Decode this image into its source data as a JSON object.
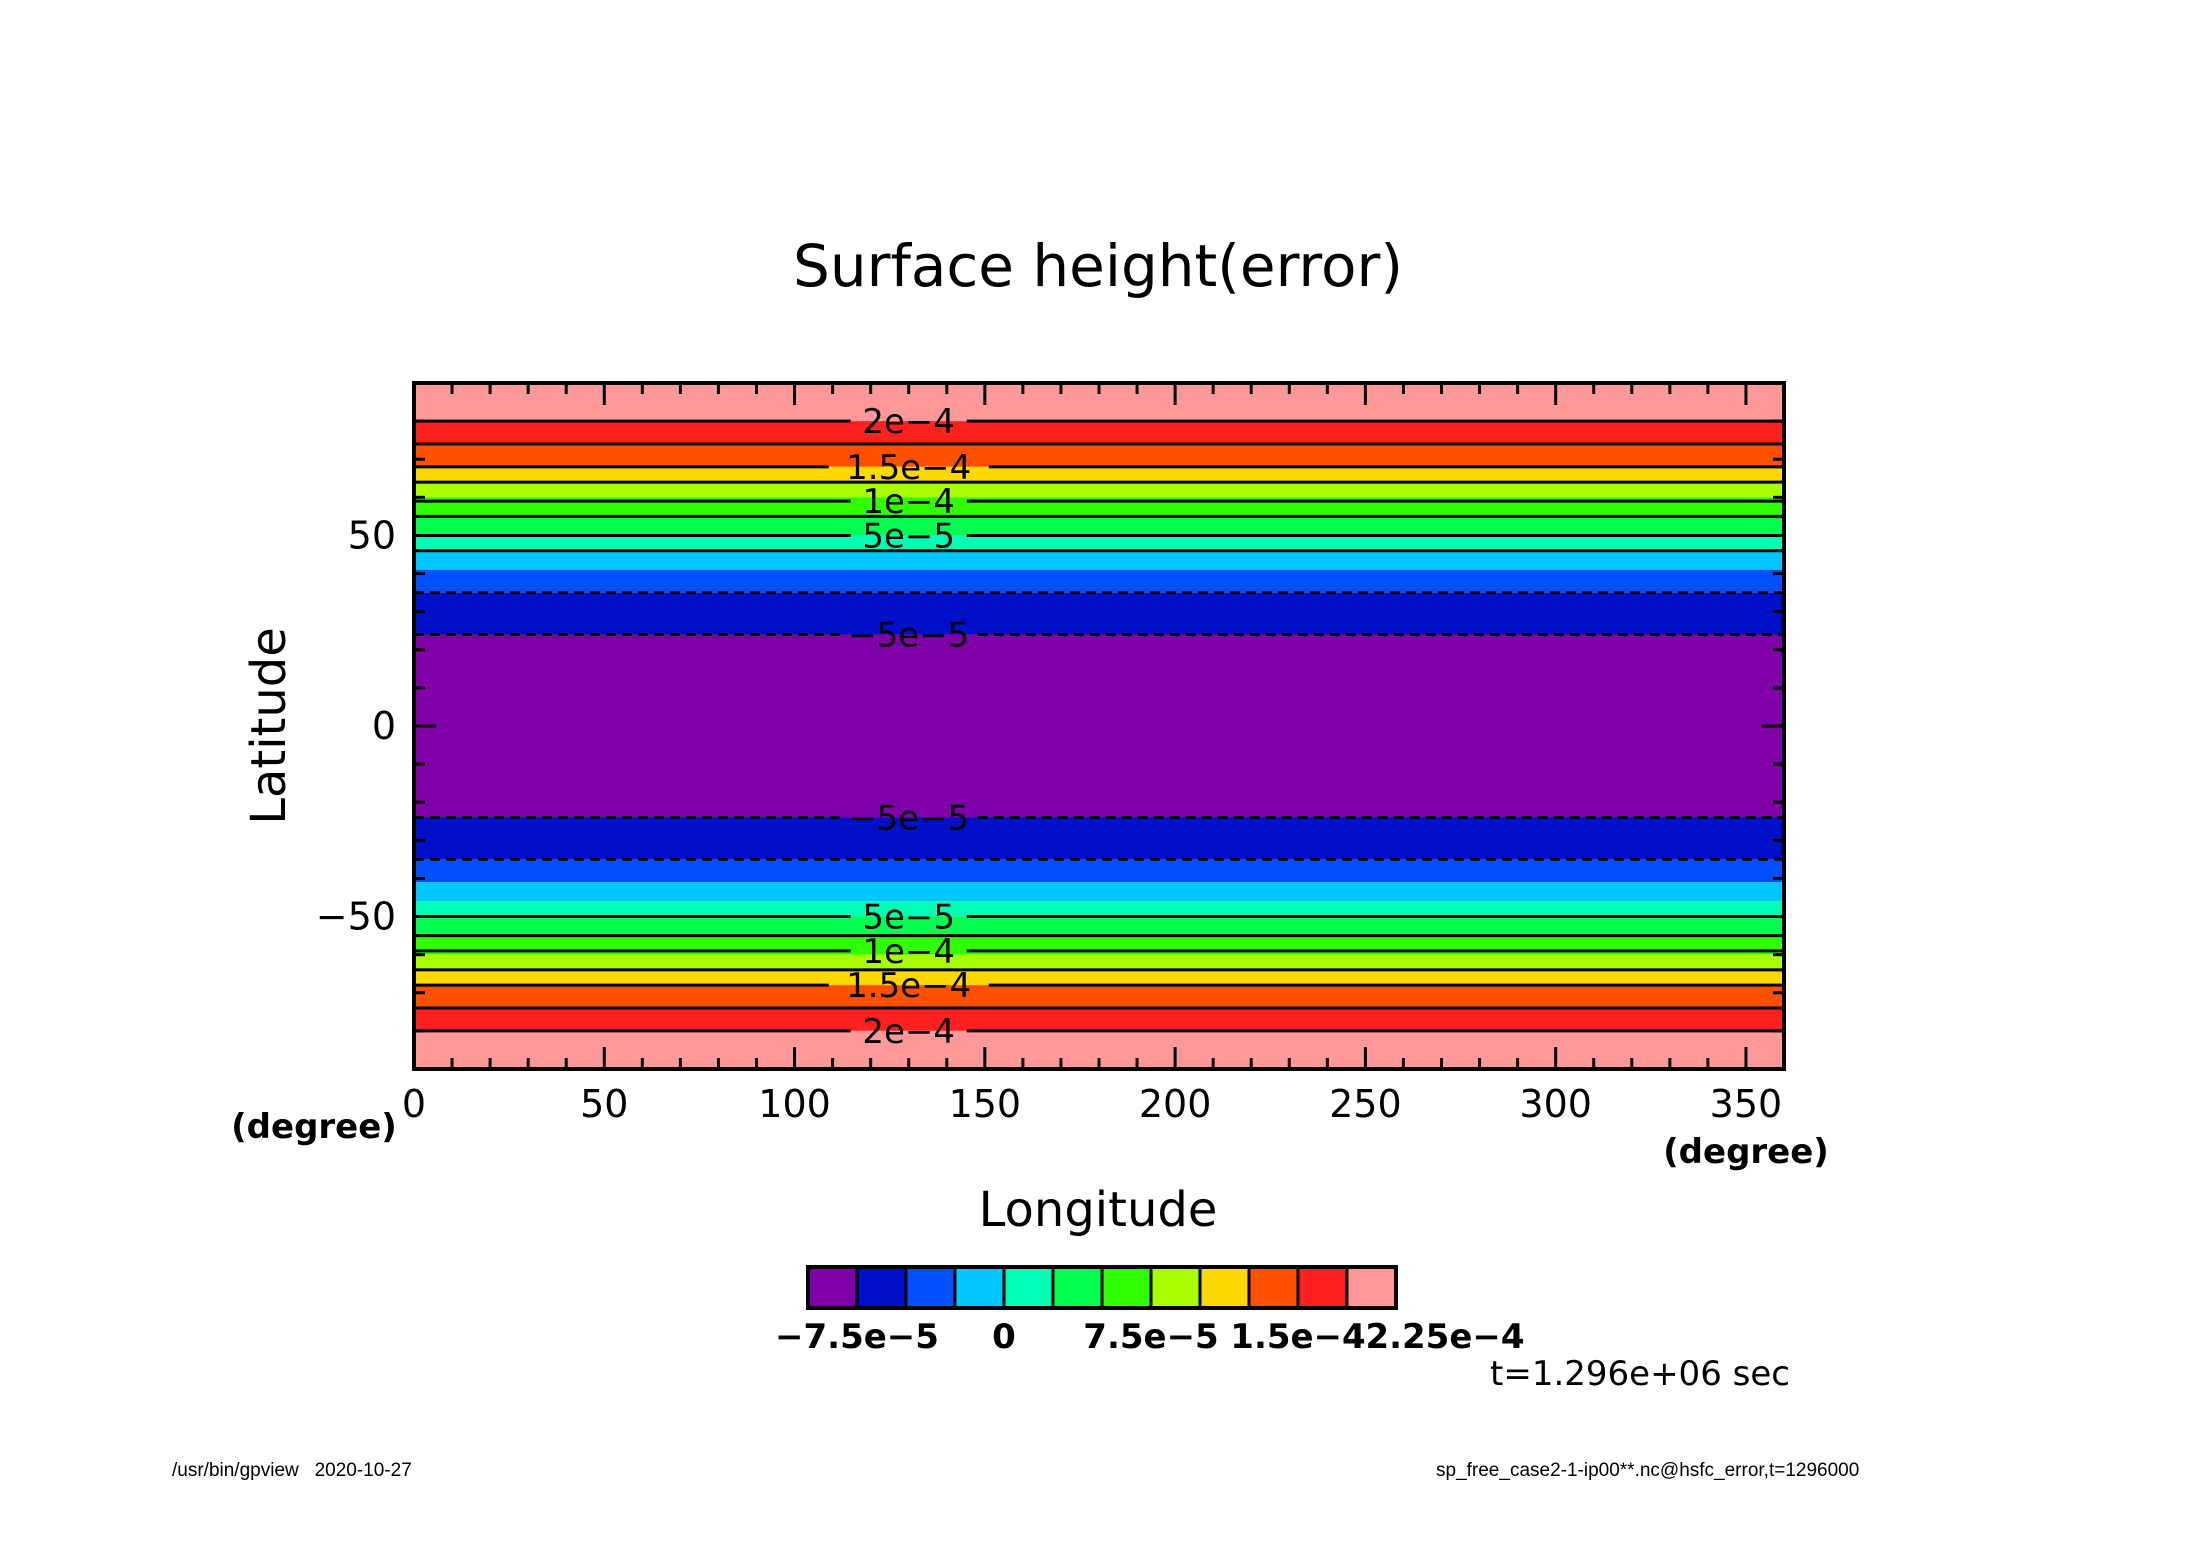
{
  "footer": {
    "left": "/usr/bin/gpview   2020-10-27",
    "right": "sp_free_case2-1-ip00**.nc@hsfc_error,t=1296000"
  },
  "chart_data": {
    "type": "heatmap",
    "title": "Surface height(error)",
    "xlabel": "Longitude",
    "ylabel": "Latitude",
    "x_unit_label": "(degree)",
    "y_unit_label": "(degree)",
    "xlim": [
      0,
      360
    ],
    "ylim": [
      -90,
      90
    ],
    "x_ticks": [
      0,
      50,
      100,
      150,
      200,
      250,
      300,
      350
    ],
    "y_ticks": [
      -50,
      0,
      50
    ],
    "x_tick_labels": [
      "0",
      "50",
      "100",
      "150",
      "200",
      "250",
      "300",
      "350"
    ],
    "y_tick_labels": [
      "−50",
      "0",
      "50"
    ],
    "time_annotation": "t=1.296e+06 sec",
    "colorbar": {
      "colors": [
        "#8000a8",
        "#0010c8",
        "#0050ff",
        "#00c8ff",
        "#00ffb4",
        "#00ff50",
        "#30ff00",
        "#a8ff00",
        "#ffd800",
        "#ff5000",
        "#ff2020",
        "#ff9898"
      ],
      "tick_labels": [
        "−7.5e−5",
        "0",
        "7.5e−5",
        "1.5e−4",
        "2.25e−4"
      ],
      "tick_values": [
        -7.5e-05,
        0,
        7.5e-05,
        0.00015,
        0.000225
      ]
    },
    "bands": [
      {
        "lat_min": 80,
        "lat_max": 90,
        "color": "#ff9898"
      },
      {
        "lat_min": 74,
        "lat_max": 80,
        "color": "#ff2020"
      },
      {
        "lat_min": 68,
        "lat_max": 74,
        "color": "#ff5000"
      },
      {
        "lat_min": 64,
        "lat_max": 68,
        "color": "#ffd800"
      },
      {
        "lat_min": 60,
        "lat_max": 64,
        "color": "#a8ff00"
      },
      {
        "lat_min": 55,
        "lat_max": 60,
        "color": "#30ff00"
      },
      {
        "lat_min": 50,
        "lat_max": 55,
        "color": "#00ff50"
      },
      {
        "lat_min": 46,
        "lat_max": 50,
        "color": "#00ffb4"
      },
      {
        "lat_min": 41,
        "lat_max": 46,
        "color": "#00c8ff"
      },
      {
        "lat_min": 35,
        "lat_max": 41,
        "color": "#0050ff"
      },
      {
        "lat_min": 24,
        "lat_max": 35,
        "color": "#0010c8"
      },
      {
        "lat_min": -24,
        "lat_max": 24,
        "color": "#8000a8"
      },
      {
        "lat_min": -35,
        "lat_max": -24,
        "color": "#0010c8"
      },
      {
        "lat_min": -41,
        "lat_max": -35,
        "color": "#0050ff"
      },
      {
        "lat_min": -46,
        "lat_max": -41,
        "color": "#00c8ff"
      },
      {
        "lat_min": -50,
        "lat_max": -46,
        "color": "#00ffb4"
      },
      {
        "lat_min": -55,
        "lat_max": -50,
        "color": "#00ff50"
      },
      {
        "lat_min": -60,
        "lat_max": -55,
        "color": "#30ff00"
      },
      {
        "lat_min": -64,
        "lat_max": -60,
        "color": "#a8ff00"
      },
      {
        "lat_min": -68,
        "lat_max": -64,
        "color": "#ffd800"
      },
      {
        "lat_min": -74,
        "lat_max": -68,
        "color": "#ff5000"
      },
      {
        "lat_min": -80,
        "lat_max": -74,
        "color": "#ff2020"
      },
      {
        "lat_min": -90,
        "lat_max": -80,
        "color": "#ff9898"
      }
    ],
    "contours": [
      {
        "lat": 80,
        "style": "solid",
        "label": "2e−4"
      },
      {
        "lat": 74,
        "style": "solid",
        "label": ""
      },
      {
        "lat": 68,
        "style": "solid",
        "label": "1.5e−4"
      },
      {
        "lat": 64,
        "style": "solid",
        "label": ""
      },
      {
        "lat": 59,
        "style": "solid",
        "label": "1e−4"
      },
      {
        "lat": 55,
        "style": "solid",
        "label": ""
      },
      {
        "lat": 50,
        "style": "solid",
        "label": "5e−5"
      },
      {
        "lat": 46,
        "style": "solid",
        "label": ""
      },
      {
        "lat": 35,
        "style": "dashed",
        "label": ""
      },
      {
        "lat": 24,
        "style": "dashed",
        "label": "−5e−5"
      },
      {
        "lat": -24,
        "style": "dashed",
        "label": "−5e−5"
      },
      {
        "lat": -35,
        "style": "dashed",
        "label": ""
      },
      {
        "lat": -50,
        "style": "solid",
        "label": "5e−5"
      },
      {
        "lat": -55,
        "style": "solid",
        "label": ""
      },
      {
        "lat": -59,
        "style": "solid",
        "label": "1e−4"
      },
      {
        "lat": -64,
        "style": "solid",
        "label": ""
      },
      {
        "lat": -68,
        "style": "solid",
        "label": "1.5e−4"
      },
      {
        "lat": -74,
        "style": "solid",
        "label": ""
      },
      {
        "lat": -80,
        "style": "solid",
        "label": "2e−4"
      }
    ],
    "contour_label_longitude": 130
  }
}
